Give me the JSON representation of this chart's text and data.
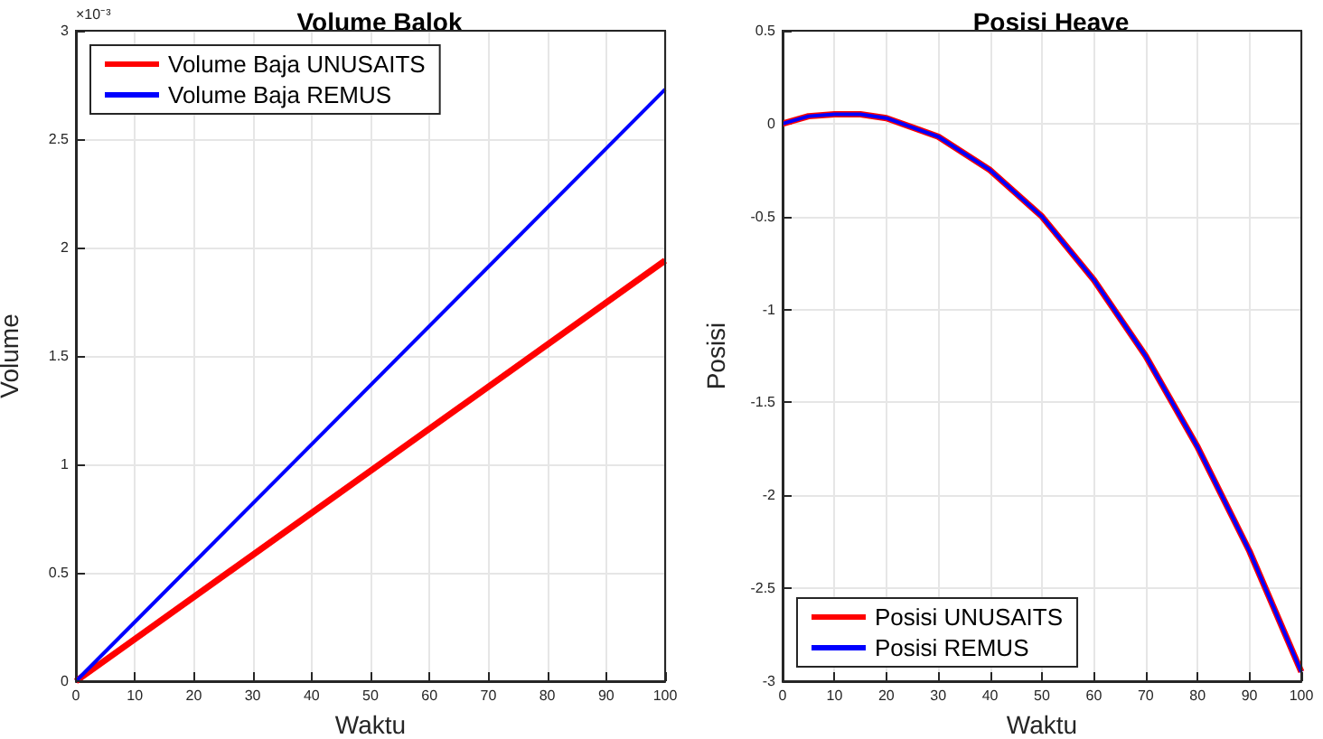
{
  "chart_data": [
    {
      "type": "line",
      "title": "Volume Balok",
      "xlabel": "Waktu",
      "ylabel": "Volume",
      "annotations": [
        "×10⁻³"
      ],
      "x": [
        0,
        100
      ],
      "series": [
        {
          "name": "Volume Baja UNUSAITS",
          "color": "#ff0000",
          "values": [
            0,
            1.94
          ]
        },
        {
          "name": "Volume Baja REMUS",
          "color": "#0000ff",
          "values": [
            0,
            2.73
          ]
        }
      ],
      "xlim": [
        0,
        100
      ],
      "xticks": [
        0,
        10,
        20,
        30,
        40,
        50,
        60,
        70,
        80,
        90,
        100
      ],
      "ylim": [
        0,
        3
      ],
      "yticks": [
        0,
        0.5,
        1,
        1.5,
        2,
        2.5,
        3
      ],
      "grid": true,
      "legend": "top left",
      "marker": "none",
      "line_style": "solid"
    },
    {
      "type": "line",
      "title": "Posisi Heave",
      "xlabel": "Waktu",
      "ylabel": "Posisi",
      "x": [
        0,
        5,
        10,
        15,
        20,
        30,
        40,
        50,
        60,
        70,
        80,
        90,
        100
      ],
      "series": [
        {
          "name": "Posisi UNUSAITS",
          "color": "#ff0000",
          "values": [
            0,
            0.04,
            0.05,
            0.05,
            0.03,
            -0.07,
            -0.25,
            -0.5,
            -0.84,
            -1.25,
            -1.74,
            -2.3,
            -2.95
          ]
        },
        {
          "name": "Posisi REMUS",
          "color": "#0000ff",
          "values": [
            0,
            0.04,
            0.05,
            0.05,
            0.03,
            -0.07,
            -0.25,
            -0.5,
            -0.84,
            -1.25,
            -1.74,
            -2.3,
            -2.95
          ]
        }
      ],
      "xlim": [
        0,
        100
      ],
      "xticks": [
        0,
        10,
        20,
        30,
        40,
        50,
        60,
        70,
        80,
        90,
        100
      ],
      "ylim": [
        -3,
        0.5
      ],
      "yticks": [
        -3,
        -2.5,
        -2,
        -1.5,
        -1,
        -0.5,
        0,
        0.5
      ],
      "grid": true,
      "legend": "bottom left",
      "marker": "none",
      "line_style": "solid"
    }
  ]
}
